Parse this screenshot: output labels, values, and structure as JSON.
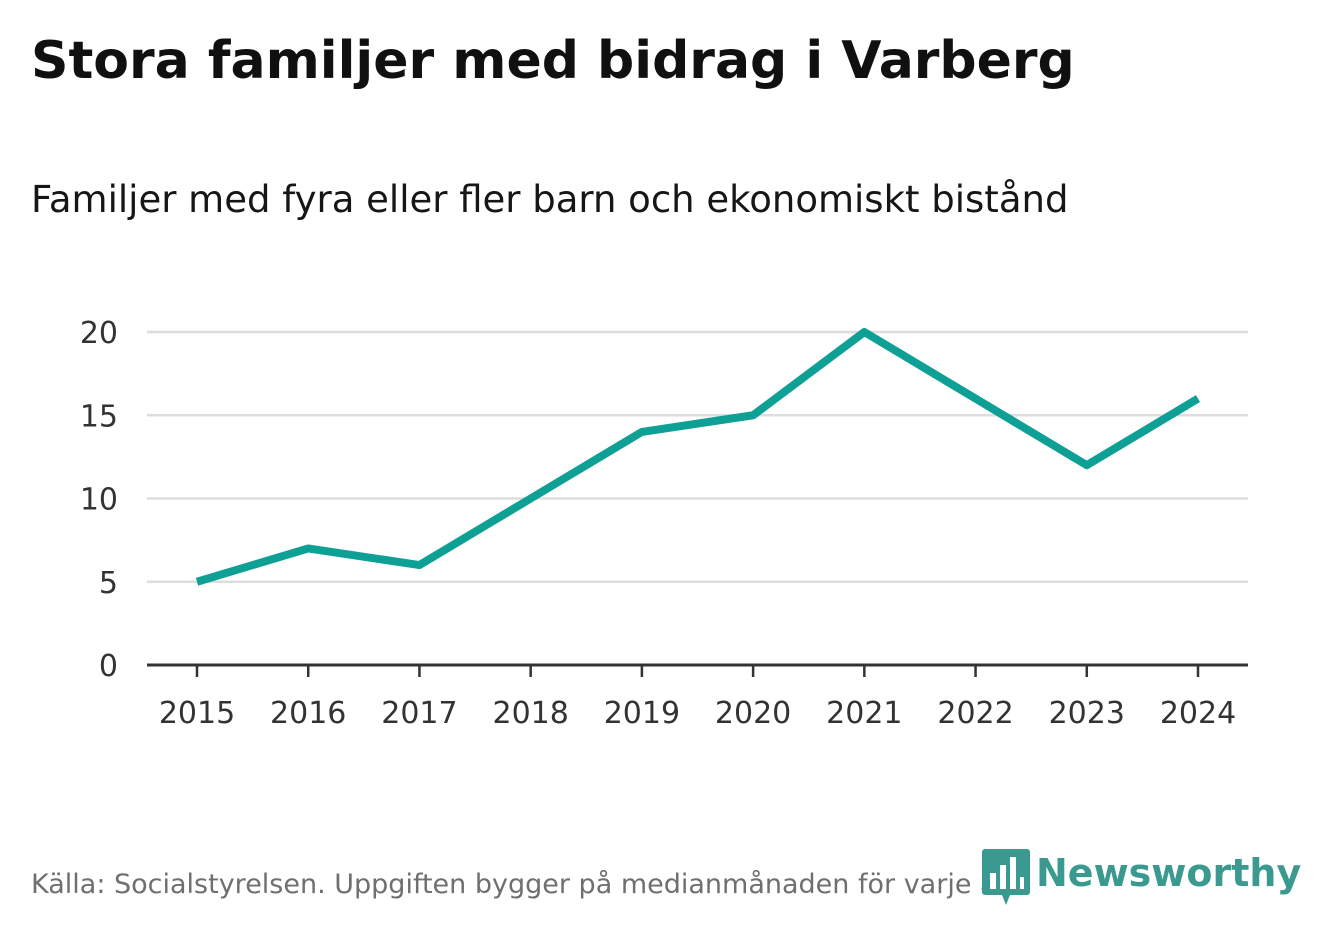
{
  "header": {
    "title": "Stora familjer med bidrag i Varberg",
    "subtitle": "Familjer med fyra eller fler barn och ekonomiskt bistånd"
  },
  "footer": {
    "source": "Källa: Socialstyrelsen. Uppgiften bygger på medianmånaden för varje år",
    "brand": "Newsworthy"
  },
  "colors": {
    "line": "#0fa095",
    "grid": "#dddddd",
    "axis": "#333333",
    "brand": "#3a9a90"
  },
  "chart_data": {
    "type": "line",
    "title": "Stora familjer med bidrag i Varberg",
    "subtitle": "Familjer med fyra eller fler barn och ekonomiskt bistånd",
    "xlabel": "",
    "ylabel": "",
    "categories": [
      "2015",
      "2016",
      "2017",
      "2018",
      "2019",
      "2020",
      "2021",
      "2022",
      "2023",
      "2024"
    ],
    "series": [
      {
        "name": "Familjer med fyra eller fler barn och ekonomiskt bistånd",
        "values": [
          5,
          7,
          6,
          10,
          14,
          15,
          20,
          16,
          12,
          16
        ]
      }
    ],
    "yticks": [
      0,
      5,
      10,
      15,
      20
    ],
    "ylim": [
      0,
      20
    ],
    "grid": true
  }
}
